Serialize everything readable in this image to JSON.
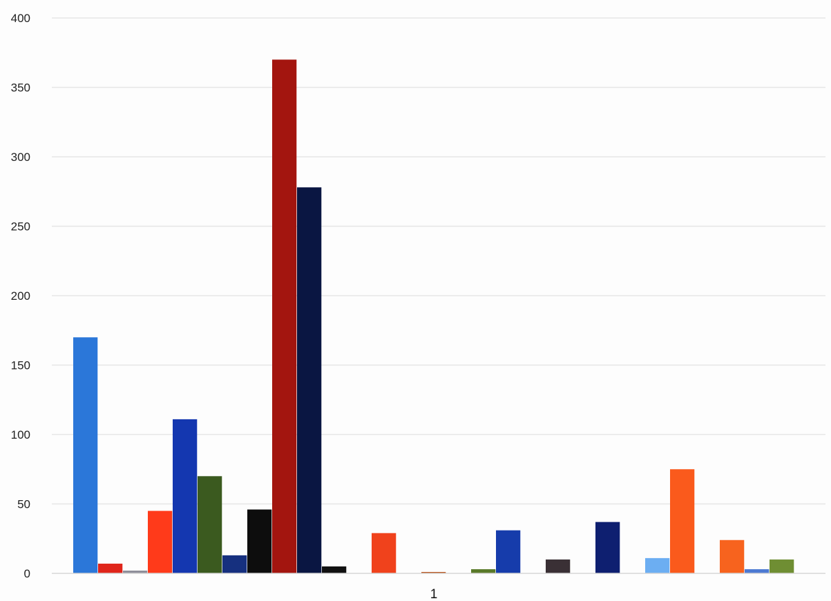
{
  "chart_data": {
    "type": "bar",
    "title": "",
    "xlabel": "",
    "ylabel": "",
    "categories": [
      "1"
    ],
    "ylim": [
      0,
      400
    ],
    "yticks": [
      0,
      50,
      100,
      150,
      200,
      250,
      300,
      350,
      400
    ],
    "grid": true,
    "legend": "none",
    "series": [
      {
        "values": [
          170
        ],
        "color": "#2b77d9"
      },
      {
        "values": [
          7
        ],
        "color": "#e0251b"
      },
      {
        "values": [
          2
        ],
        "color": "#8f8f9a"
      },
      {
        "values": [
          45
        ],
        "color": "#ff3a1a"
      },
      {
        "values": [
          111
        ],
        "color": "#1437b0"
      },
      {
        "values": [
          70
        ],
        "color": "#3b5a1f"
      },
      {
        "values": [
          13
        ],
        "color": "#16307f"
      },
      {
        "values": [
          46
        ],
        "color": "#0d0d0d"
      },
      {
        "values": [
          370
        ],
        "color": "#a3150f"
      },
      {
        "values": [
          278
        ],
        "color": "#0a1642"
      },
      {
        "values": [
          5
        ],
        "color": "#111111"
      },
      {
        "values": [
          0
        ],
        "color": "#888888"
      },
      {
        "values": [
          29
        ],
        "color": "#f0421c"
      },
      {
        "values": [
          0
        ],
        "color": "#888888"
      },
      {
        "values": [
          1
        ],
        "color": "#b8541f"
      },
      {
        "values": [
          0
        ],
        "color": "#888888"
      },
      {
        "values": [
          3
        ],
        "color": "#5a7a2a"
      },
      {
        "values": [
          31
        ],
        "color": "#163cab"
      },
      {
        "values": [
          0
        ],
        "color": "#888888"
      },
      {
        "values": [
          10
        ],
        "color": "#3a3035"
      },
      {
        "values": [
          0
        ],
        "color": "#888888"
      },
      {
        "values": [
          37
        ],
        "color": "#0e1f70"
      },
      {
        "values": [
          0
        ],
        "color": "#888888"
      },
      {
        "values": [
          11
        ],
        "color": "#6caef2"
      },
      {
        "values": [
          75
        ],
        "color": "#fa5a1c"
      },
      {
        "values": [
          0
        ],
        "color": "#888888"
      },
      {
        "values": [
          24
        ],
        "color": "#f7631e"
      },
      {
        "values": [
          3
        ],
        "color": "#4d7ad2"
      },
      {
        "values": [
          10
        ],
        "color": "#6f8e33"
      }
    ]
  }
}
